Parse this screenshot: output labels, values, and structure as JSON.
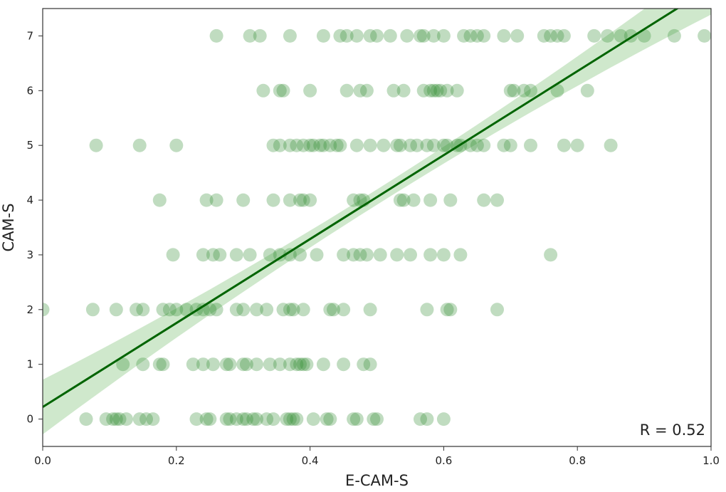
{
  "chart_data": {
    "type": "scatter",
    "title": "",
    "xlabel": "E-CAM-S",
    "ylabel": "CAM-S",
    "xlim": [
      0.0,
      1.0
    ],
    "ylim": [
      -0.5,
      7.5
    ],
    "xticks": [
      0.0,
      0.2,
      0.4,
      0.6,
      0.8,
      1.0
    ],
    "xtick_labels": [
      "0.0",
      "0.2",
      "0.4",
      "0.6",
      "0.8",
      "1.0"
    ],
    "yticks": [
      0,
      1,
      2,
      3,
      4,
      5,
      6,
      7
    ],
    "ytick_labels": [
      "0",
      "1",
      "2",
      "3",
      "4",
      "5",
      "6",
      "7"
    ],
    "grid": false,
    "annotation": "R = 0.52",
    "colors": {
      "points": "#2e8b2e",
      "line": "#006400",
      "band": "#a8d5a2"
    },
    "regression": {
      "intercept": 0.22,
      "slope": 7.67,
      "ci_half_width_at_x0": 0.5,
      "ci_half_width_center": 0.14
    },
    "series": [
      {
        "points": [
          [
            0.0,
            2
          ],
          [
            0.075,
            2
          ],
          [
            0.11,
            2
          ],
          [
            0.14,
            2
          ],
          [
            0.15,
            2
          ],
          [
            0.18,
            2
          ],
          [
            0.19,
            2
          ],
          [
            0.2,
            2
          ],
          [
            0.215,
            2
          ],
          [
            0.23,
            2
          ],
          [
            0.24,
            2
          ],
          [
            0.25,
            2
          ],
          [
            0.26,
            2
          ],
          [
            0.29,
            2
          ],
          [
            0.3,
            2
          ],
          [
            0.32,
            2
          ],
          [
            0.335,
            2
          ],
          [
            0.36,
            2
          ],
          [
            0.37,
            2
          ],
          [
            0.375,
            2
          ],
          [
            0.39,
            2
          ],
          [
            0.43,
            2
          ],
          [
            0.435,
            2
          ],
          [
            0.45,
            2
          ],
          [
            0.49,
            2
          ],
          [
            0.575,
            2
          ],
          [
            0.605,
            2
          ],
          [
            0.61,
            2
          ],
          [
            0.68,
            2
          ],
          [
            0.065,
            0
          ],
          [
            0.095,
            0
          ],
          [
            0.105,
            0
          ],
          [
            0.11,
            0
          ],
          [
            0.115,
            0
          ],
          [
            0.125,
            0
          ],
          [
            0.145,
            0
          ],
          [
            0.155,
            0
          ],
          [
            0.165,
            0
          ],
          [
            0.23,
            0
          ],
          [
            0.245,
            0
          ],
          [
            0.25,
            0
          ],
          [
            0.275,
            0
          ],
          [
            0.28,
            0
          ],
          [
            0.29,
            0
          ],
          [
            0.3,
            0
          ],
          [
            0.305,
            0
          ],
          [
            0.315,
            0
          ],
          [
            0.32,
            0
          ],
          [
            0.335,
            0
          ],
          [
            0.345,
            0
          ],
          [
            0.365,
            0
          ],
          [
            0.37,
            0
          ],
          [
            0.375,
            0
          ],
          [
            0.38,
            0
          ],
          [
            0.405,
            0
          ],
          [
            0.425,
            0
          ],
          [
            0.43,
            0
          ],
          [
            0.465,
            0
          ],
          [
            0.47,
            0
          ],
          [
            0.495,
            0
          ],
          [
            0.5,
            0
          ],
          [
            0.565,
            0
          ],
          [
            0.575,
            0
          ],
          [
            0.6,
            0
          ],
          [
            0.12,
            1
          ],
          [
            0.15,
            1
          ],
          [
            0.175,
            1
          ],
          [
            0.18,
            1
          ],
          [
            0.225,
            1
          ],
          [
            0.24,
            1
          ],
          [
            0.255,
            1
          ],
          [
            0.275,
            1
          ],
          [
            0.28,
            1
          ],
          [
            0.3,
            1
          ],
          [
            0.305,
            1
          ],
          [
            0.32,
            1
          ],
          [
            0.34,
            1
          ],
          [
            0.355,
            1
          ],
          [
            0.37,
            1
          ],
          [
            0.38,
            1
          ],
          [
            0.385,
            1
          ],
          [
            0.39,
            1
          ],
          [
            0.395,
            1
          ],
          [
            0.42,
            1
          ],
          [
            0.45,
            1
          ],
          [
            0.48,
            1
          ],
          [
            0.49,
            1
          ],
          [
            0.195,
            3
          ],
          [
            0.24,
            3
          ],
          [
            0.255,
            3
          ],
          [
            0.265,
            3
          ],
          [
            0.29,
            3
          ],
          [
            0.31,
            3
          ],
          [
            0.34,
            3
          ],
          [
            0.355,
            3
          ],
          [
            0.37,
            3
          ],
          [
            0.385,
            3
          ],
          [
            0.41,
            3
          ],
          [
            0.45,
            3
          ],
          [
            0.465,
            3
          ],
          [
            0.475,
            3
          ],
          [
            0.485,
            3
          ],
          [
            0.505,
            3
          ],
          [
            0.53,
            3
          ],
          [
            0.55,
            3
          ],
          [
            0.58,
            3
          ],
          [
            0.6,
            3
          ],
          [
            0.625,
            3
          ],
          [
            0.76,
            3
          ],
          [
            0.175,
            4
          ],
          [
            0.245,
            4
          ],
          [
            0.26,
            4
          ],
          [
            0.3,
            4
          ],
          [
            0.345,
            4
          ],
          [
            0.37,
            4
          ],
          [
            0.385,
            4
          ],
          [
            0.39,
            4
          ],
          [
            0.4,
            4
          ],
          [
            0.465,
            4
          ],
          [
            0.475,
            4
          ],
          [
            0.48,
            4
          ],
          [
            0.535,
            4
          ],
          [
            0.54,
            4
          ],
          [
            0.555,
            4
          ],
          [
            0.58,
            4
          ],
          [
            0.61,
            4
          ],
          [
            0.66,
            4
          ],
          [
            0.68,
            4
          ],
          [
            0.08,
            5
          ],
          [
            0.145,
            5
          ],
          [
            0.2,
            5
          ],
          [
            0.345,
            5
          ],
          [
            0.355,
            5
          ],
          [
            0.37,
            5
          ],
          [
            0.38,
            5
          ],
          [
            0.39,
            5
          ],
          [
            0.4,
            5
          ],
          [
            0.405,
            5
          ],
          [
            0.415,
            5
          ],
          [
            0.42,
            5
          ],
          [
            0.43,
            5
          ],
          [
            0.44,
            5
          ],
          [
            0.445,
            5
          ],
          [
            0.47,
            5
          ],
          [
            0.49,
            5
          ],
          [
            0.51,
            5
          ],
          [
            0.53,
            5
          ],
          [
            0.535,
            5
          ],
          [
            0.55,
            5
          ],
          [
            0.56,
            5
          ],
          [
            0.575,
            5
          ],
          [
            0.585,
            5
          ],
          [
            0.6,
            5
          ],
          [
            0.605,
            5
          ],
          [
            0.62,
            5
          ],
          [
            0.625,
            5
          ],
          [
            0.64,
            5
          ],
          [
            0.65,
            5
          ],
          [
            0.66,
            5
          ],
          [
            0.69,
            5
          ],
          [
            0.7,
            5
          ],
          [
            0.73,
            5
          ],
          [
            0.78,
            5
          ],
          [
            0.8,
            5
          ],
          [
            0.85,
            5
          ],
          [
            0.33,
            6
          ],
          [
            0.355,
            6
          ],
          [
            0.36,
            6
          ],
          [
            0.4,
            6
          ],
          [
            0.455,
            6
          ],
          [
            0.475,
            6
          ],
          [
            0.485,
            6
          ],
          [
            0.525,
            6
          ],
          [
            0.54,
            6
          ],
          [
            0.57,
            6
          ],
          [
            0.58,
            6
          ],
          [
            0.585,
            6
          ],
          [
            0.59,
            6
          ],
          [
            0.595,
            6
          ],
          [
            0.605,
            6
          ],
          [
            0.62,
            6
          ],
          [
            0.7,
            6
          ],
          [
            0.705,
            6
          ],
          [
            0.72,
            6
          ],
          [
            0.73,
            6
          ],
          [
            0.77,
            6
          ],
          [
            0.815,
            6
          ],
          [
            0.26,
            7
          ],
          [
            0.31,
            7
          ],
          [
            0.325,
            7
          ],
          [
            0.37,
            7
          ],
          [
            0.42,
            7
          ],
          [
            0.445,
            7
          ],
          [
            0.455,
            7
          ],
          [
            0.47,
            7
          ],
          [
            0.49,
            7
          ],
          [
            0.5,
            7
          ],
          [
            0.52,
            7
          ],
          [
            0.545,
            7
          ],
          [
            0.565,
            7
          ],
          [
            0.57,
            7
          ],
          [
            0.585,
            7
          ],
          [
            0.6,
            7
          ],
          [
            0.63,
            7
          ],
          [
            0.64,
            7
          ],
          [
            0.65,
            7
          ],
          [
            0.66,
            7
          ],
          [
            0.69,
            7
          ],
          [
            0.71,
            7
          ],
          [
            0.75,
            7
          ],
          [
            0.76,
            7
          ],
          [
            0.77,
            7
          ],
          [
            0.78,
            7
          ],
          [
            0.825,
            7
          ],
          [
            0.845,
            7
          ],
          [
            0.865,
            7
          ],
          [
            0.88,
            7
          ],
          [
            0.9,
            7
          ],
          [
            0.945,
            7
          ],
          [
            0.99,
            7
          ]
        ]
      }
    ]
  }
}
